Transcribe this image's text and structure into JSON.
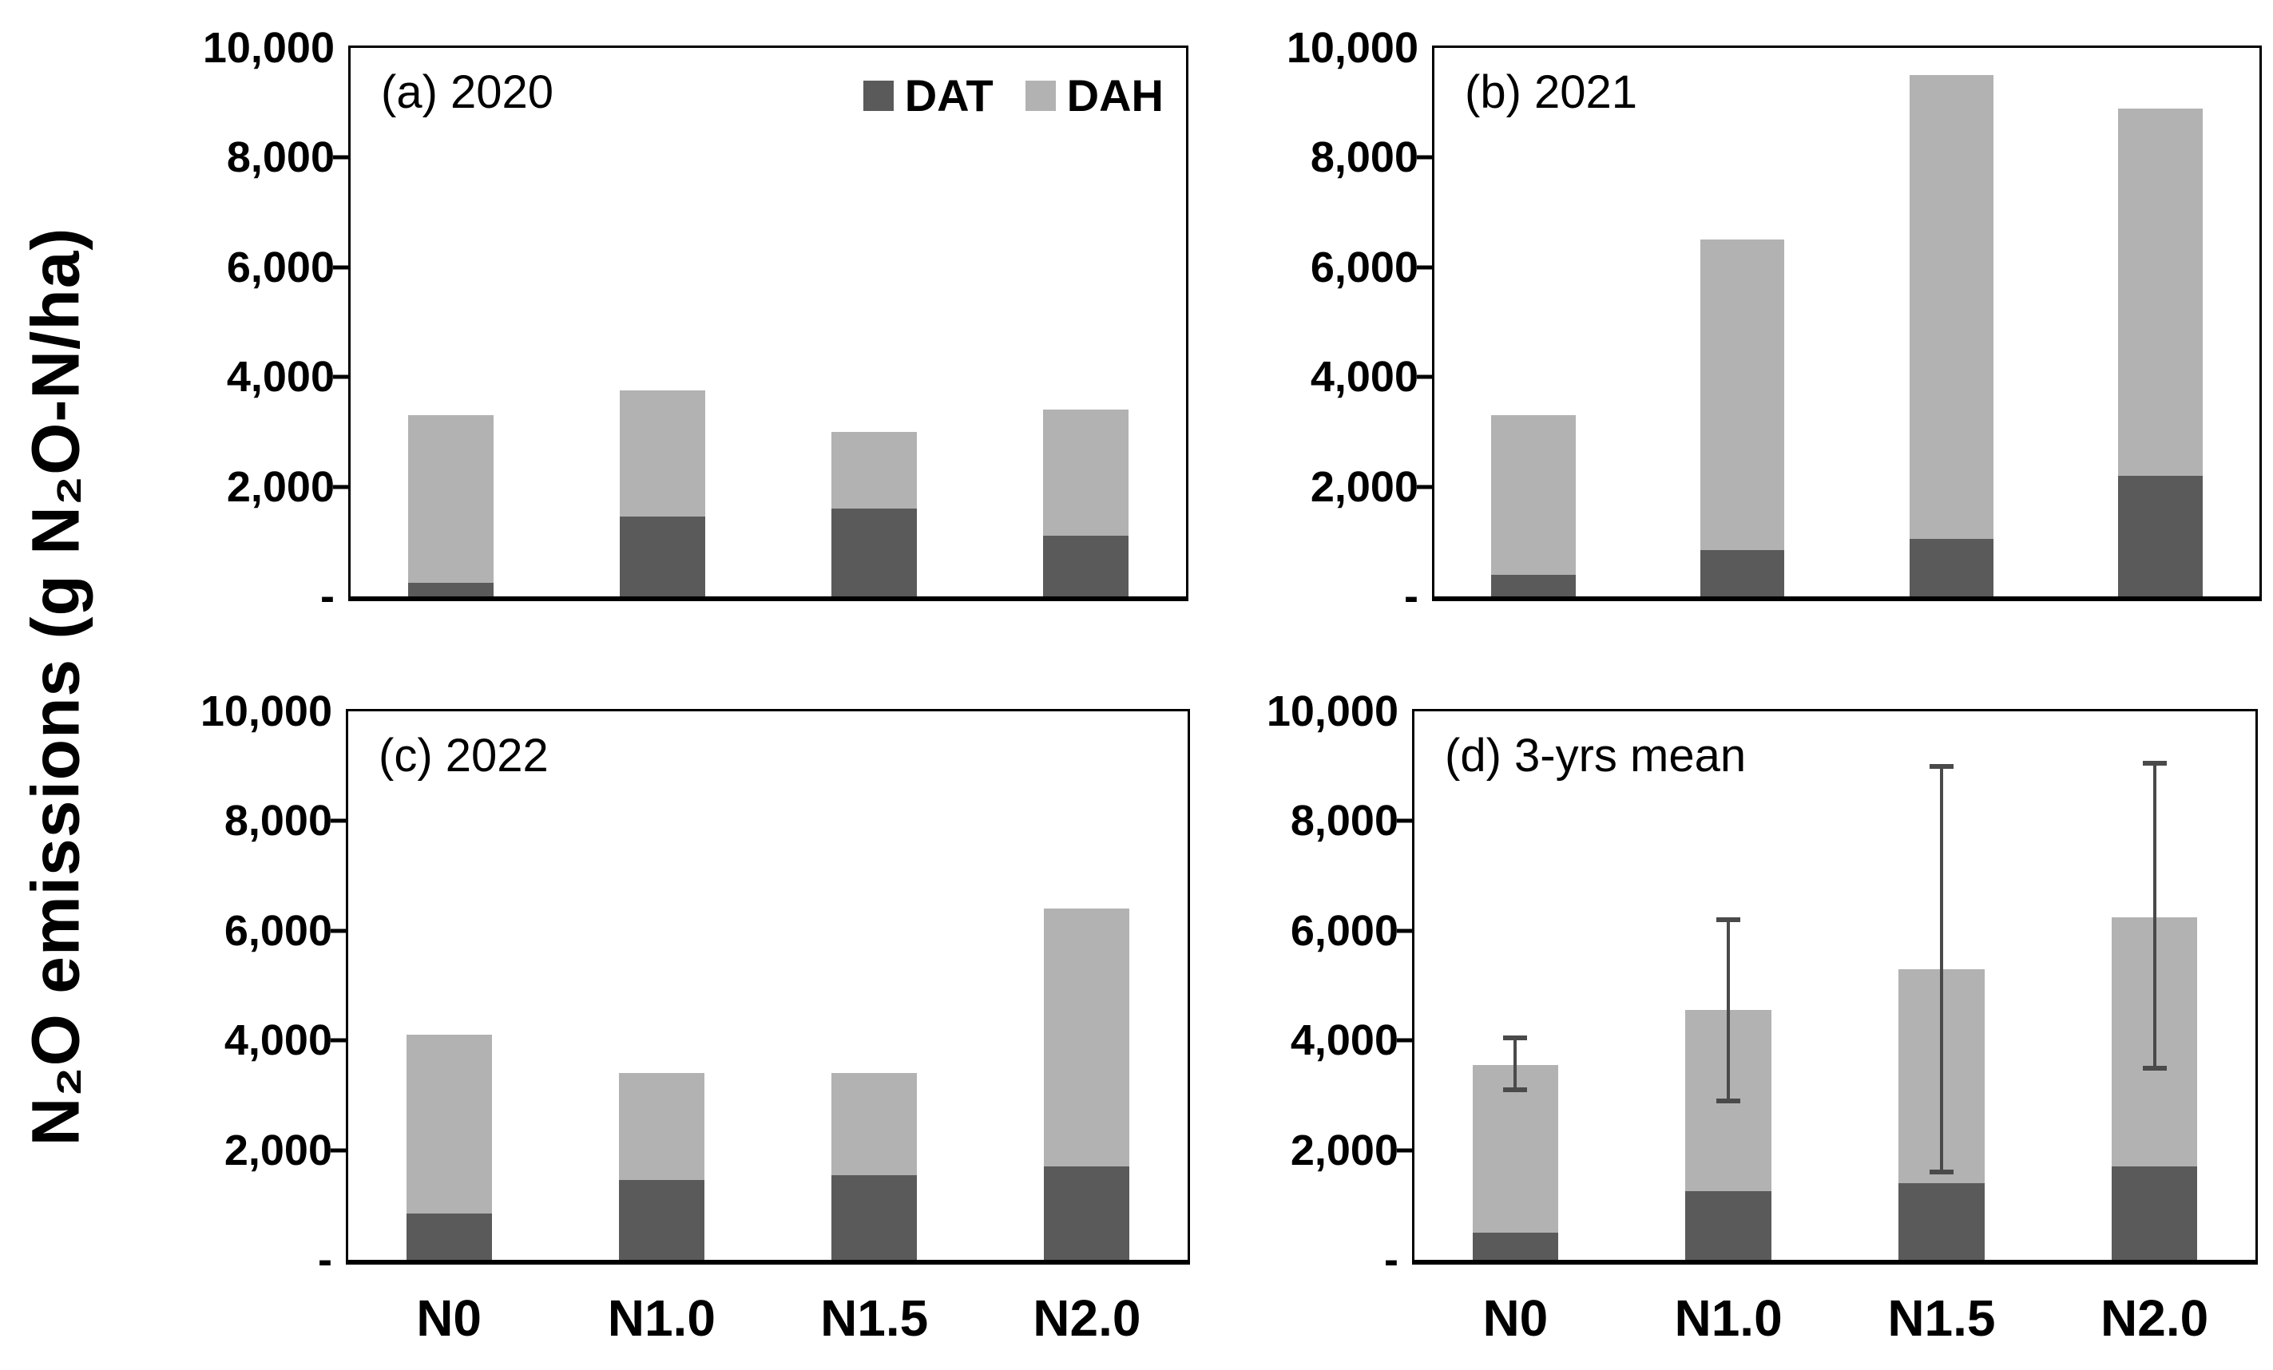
{
  "figure": {
    "y_axis_label": "N₂O emissions (g N₂O-N/ha)",
    "y_tick_labels": [
      "10,000",
      "8,000",
      "6,000",
      "4,000",
      "2,000",
      "-"
    ],
    "colors": {
      "dat": "#5a5a5a",
      "dah": "#b2b2b2",
      "error_bar": "#4a4a4a",
      "axis": "#000000"
    },
    "legend": {
      "items": [
        {
          "label": "DAT",
          "color": "#5a5a5a"
        },
        {
          "label": "DAH",
          "color": "#b2b2b2"
        }
      ]
    }
  },
  "chart_data": [
    {
      "type": "bar",
      "stacked": true,
      "panel_label": "(a) 2020",
      "categories": [
        "N0",
        "N1.0",
        "N1.5",
        "N2.0"
      ],
      "x_labels_shown": false,
      "ylim": [
        0,
        10000
      ],
      "series": [
        {
          "name": "DAT",
          "values": [
            250,
            1450,
            1600,
            1100
          ]
        },
        {
          "name": "DAH",
          "values": [
            3050,
            2300,
            1400,
            2300
          ]
        }
      ],
      "stack_totals": [
        3300,
        3750,
        3000,
        3400
      ]
    },
    {
      "type": "bar",
      "stacked": true,
      "panel_label": "(b) 2021",
      "categories": [
        "N0",
        "N1.0",
        "N1.5",
        "N2.0"
      ],
      "x_labels_shown": false,
      "ylim": [
        0,
        10000
      ],
      "series": [
        {
          "name": "DAT",
          "values": [
            400,
            850,
            1050,
            2200
          ]
        },
        {
          "name": "DAH",
          "values": [
            2900,
            5650,
            8450,
            6700
          ]
        }
      ],
      "stack_totals": [
        3300,
        6500,
        9500,
        8900
      ]
    },
    {
      "type": "bar",
      "stacked": true,
      "panel_label": "(c) 2022",
      "categories": [
        "N0",
        "N1.0",
        "N1.5",
        "N2.0"
      ],
      "x_labels_shown": true,
      "ylim": [
        0,
        10000
      ],
      "series": [
        {
          "name": "DAT",
          "values": [
            850,
            1450,
            1550,
            1700
          ]
        },
        {
          "name": "DAH",
          "values": [
            3250,
            1950,
            1850,
            4700
          ]
        }
      ],
      "stack_totals": [
        4100,
        3400,
        3400,
        6400
      ]
    },
    {
      "type": "bar",
      "stacked": true,
      "panel_label": "(d) 3-yrs mean",
      "categories": [
        "N0",
        "N1.0",
        "N1.5",
        "N2.0"
      ],
      "x_labels_shown": true,
      "ylim": [
        0,
        10000
      ],
      "series": [
        {
          "name": "DAT",
          "values": [
            500,
            1250,
            1400,
            1700
          ]
        },
        {
          "name": "DAH",
          "values": [
            3050,
            3300,
            3900,
            4550
          ]
        }
      ],
      "stack_totals": [
        3550,
        4550,
        5300,
        6250
      ],
      "error_bars": {
        "lower": [
          3100,
          2900,
          1600,
          3500
        ],
        "upper": [
          4050,
          6200,
          9000,
          9050
        ]
      }
    }
  ]
}
